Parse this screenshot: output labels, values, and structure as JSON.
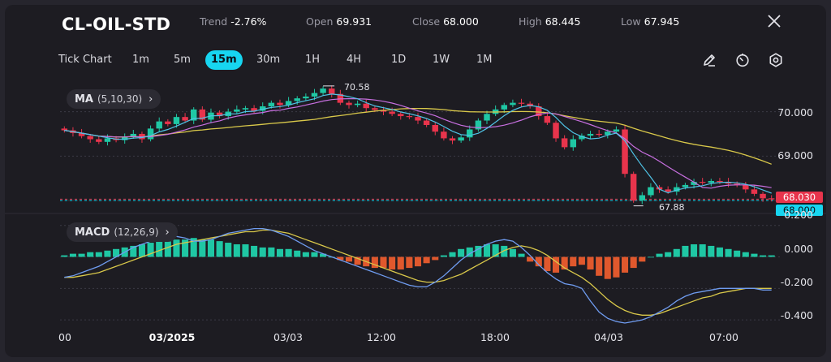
{
  "header": {
    "symbol": "CL-OIL-STD",
    "trend_label": "Trend",
    "trend_value": "-2.76%",
    "open_label": "Open",
    "open_value": "69.931",
    "close_label": "Close",
    "close_value": "68.000",
    "high_label": "High",
    "high_value": "68.445",
    "low_label": "Low",
    "low_value": "67.945",
    "close_icon": "close-x-icon"
  },
  "toolbar": {
    "chart_type_label": "Tick Chart",
    "timeframes": [
      "1m",
      "5m",
      "15m",
      "30m",
      "1H",
      "4H",
      "1D",
      "1W",
      "1M"
    ],
    "active_timeframe": "15m",
    "tools": [
      "pencil-icon",
      "timer-icon",
      "settings-gear-icon"
    ]
  },
  "indicators": {
    "ma": {
      "name": "MA",
      "params": "(5,10,30)",
      "chevron": "›"
    },
    "macd": {
      "name": "MACD",
      "params": "(12,26,9)",
      "chevron": "›"
    }
  },
  "price_axis": {
    "labels": [
      "70.000",
      "69.000",
      "68.000"
    ],
    "current_price": "68.030",
    "close_line_label": "68.000"
  },
  "macd_axis": {
    "labels": [
      "0.200",
      "0.000",
      "-0.200",
      "-0.400"
    ]
  },
  "annotations": {
    "high_marker": "70.58",
    "low_marker": "67.88"
  },
  "time_axis": {
    "labels": [
      "00",
      "03/2025",
      "03/03",
      "12:00",
      "18:00",
      "04/03",
      "07:00"
    ],
    "emphasized": "03/2025"
  },
  "colors": {
    "background": "#1d1c22",
    "up": "#1fc7a4",
    "down": "#e8344c",
    "accent": "#17d5f0",
    "macd_positive": "#1fc7a4",
    "macd_negative": "#e0582d",
    "ma5": "#4fc3e6",
    "ma10": "#c86fe0",
    "ma30": "#d9c84a",
    "dif": "#6f9cf0",
    "dea": "#d9c84a"
  },
  "chart_data": {
    "type": "candlestick",
    "price_range": [
      67.8,
      70.65
    ],
    "close_line": 68.0,
    "last_price": 68.03,
    "high_marker": 70.58,
    "low_marker": 67.88,
    "closes": [
      69.58,
      69.52,
      69.45,
      69.38,
      69.32,
      69.4,
      69.36,
      69.44,
      69.5,
      69.38,
      69.62,
      69.78,
      69.72,
      69.88,
      69.8,
      70.05,
      69.82,
      69.98,
      69.9,
      70.0,
      70.05,
      70.08,
      70.02,
      70.12,
      70.2,
      70.15,
      70.24,
      70.3,
      70.34,
      70.42,
      70.52,
      70.4,
      70.2,
      70.15,
      70.18,
      70.08,
      70.04,
      70.0,
      69.95,
      69.9,
      69.88,
      69.8,
      69.7,
      69.55,
      69.4,
      69.35,
      69.42,
      69.6,
      69.8,
      69.95,
      70.05,
      70.15,
      70.2,
      70.18,
      70.12,
      69.9,
      69.75,
      69.4,
      69.2,
      69.38,
      69.46,
      69.5,
      69.48,
      69.55,
      69.6,
      68.6,
      68.0,
      68.12,
      68.3,
      68.25,
      68.2,
      68.3,
      68.35,
      68.42,
      68.4,
      68.44,
      68.42,
      68.38,
      68.35,
      68.25,
      68.15,
      68.05,
      68.03
    ],
    "macd_range": [
      -0.42,
      0.25
    ],
    "macd_histogram": [
      0.01,
      0.02,
      0.02,
      0.03,
      0.03,
      0.04,
      0.05,
      0.06,
      0.07,
      0.08,
      0.09,
      0.1,
      0.1,
      0.11,
      0.11,
      0.12,
      0.11,
      0.11,
      0.1,
      0.09,
      0.08,
      0.08,
      0.07,
      0.06,
      0.06,
      0.05,
      0.05,
      0.04,
      0.03,
      0.03,
      0.02,
      0.0,
      -0.02,
      -0.03,
      -0.05,
      -0.06,
      -0.07,
      -0.07,
      -0.08,
      -0.08,
      -0.07,
      -0.06,
      -0.04,
      -0.02,
      0.01,
      0.03,
      0.05,
      0.06,
      0.07,
      0.08,
      0.08,
      0.07,
      0.05,
      0.02,
      -0.03,
      -0.06,
      -0.09,
      -0.1,
      -0.08,
      -0.06,
      -0.05,
      -0.08,
      -0.12,
      -0.14,
      -0.13,
      -0.1,
      -0.07,
      -0.03,
      0.0,
      0.02,
      0.03,
      0.05,
      0.07,
      0.08,
      0.08,
      0.07,
      0.06,
      0.05,
      0.04,
      0.03,
      0.02,
      0.01,
      0.01
    ],
    "macd_dif": [
      -0.13,
      -0.12,
      -0.1,
      -0.08,
      -0.06,
      -0.03,
      0.0,
      0.03,
      0.06,
      0.08,
      0.1,
      0.12,
      0.13,
      0.13,
      0.12,
      0.1,
      0.1,
      0.11,
      0.13,
      0.15,
      0.16,
      0.17,
      0.18,
      0.18,
      0.17,
      0.15,
      0.13,
      0.1,
      0.07,
      0.04,
      0.02,
      0.0,
      -0.02,
      -0.04,
      -0.06,
      -0.08,
      -0.1,
      -0.12,
      -0.14,
      -0.16,
      -0.18,
      -0.19,
      -0.19,
      -0.16,
      -0.12,
      -0.07,
      -0.02,
      0.02,
      0.05,
      0.08,
      0.1,
      0.11,
      0.1,
      0.06,
      0.01,
      -0.05,
      -0.1,
      -0.14,
      -0.17,
      -0.18,
      -0.2,
      -0.28,
      -0.35,
      -0.39,
      -0.41,
      -0.42,
      -0.41,
      -0.4,
      -0.38,
      -0.35,
      -0.32,
      -0.28,
      -0.25,
      -0.23,
      -0.22,
      -0.21,
      -0.2,
      -0.2,
      -0.2,
      -0.2,
      -0.2,
      -0.21,
      -0.21
    ],
    "macd_dea": [
      -0.13,
      -0.13,
      -0.12,
      -0.11,
      -0.1,
      -0.08,
      -0.06,
      -0.04,
      -0.02,
      0.0,
      0.02,
      0.04,
      0.06,
      0.08,
      0.09,
      0.1,
      0.11,
      0.12,
      0.13,
      0.14,
      0.15,
      0.16,
      0.16,
      0.17,
      0.17,
      0.16,
      0.15,
      0.13,
      0.11,
      0.09,
      0.07,
      0.05,
      0.03,
      0.01,
      -0.01,
      -0.03,
      -0.05,
      -0.07,
      -0.09,
      -0.11,
      -0.13,
      -0.15,
      -0.16,
      -0.16,
      -0.15,
      -0.13,
      -0.11,
      -0.08,
      -0.05,
      -0.02,
      0.01,
      0.04,
      0.06,
      0.07,
      0.06,
      0.04,
      0.01,
      -0.03,
      -0.07,
      -0.1,
      -0.13,
      -0.17,
      -0.22,
      -0.27,
      -0.31,
      -0.34,
      -0.36,
      -0.37,
      -0.37,
      -0.36,
      -0.34,
      -0.32,
      -0.3,
      -0.28,
      -0.26,
      -0.25,
      -0.23,
      -0.22,
      -0.21,
      -0.2,
      -0.2,
      -0.2,
      -0.2
    ]
  }
}
